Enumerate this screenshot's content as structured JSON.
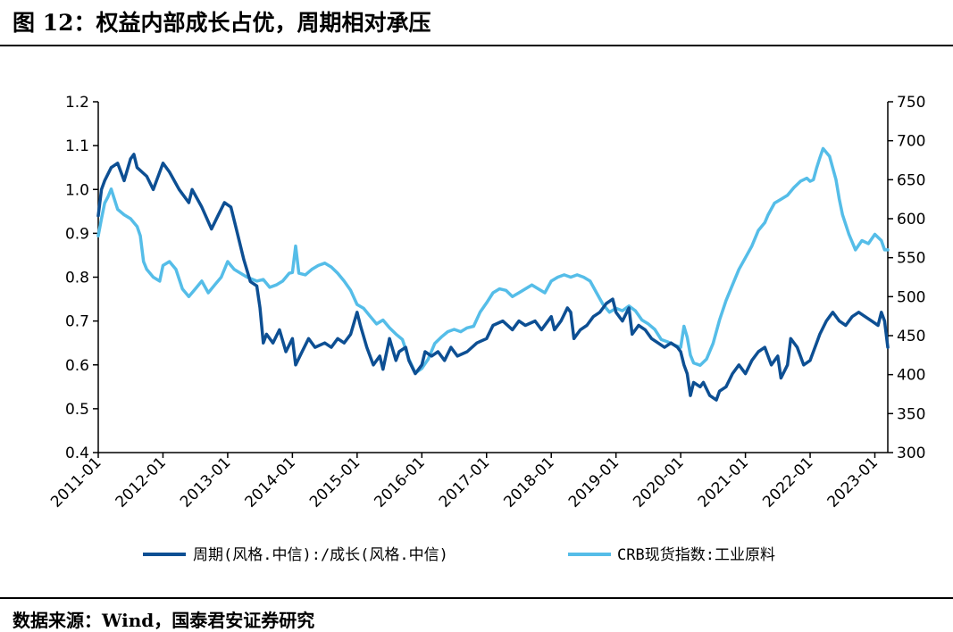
{
  "header": {
    "title": "图 12：权益内部成长占优，周期相对承压"
  },
  "footer": {
    "source": "数据来源：Wind，国泰君安证券研究"
  },
  "colors": {
    "series1": "#0d4f93",
    "series2": "#55bde8"
  },
  "chart_data": {
    "type": "line",
    "title": "图 12：权益内部成长占优，周期相对承压",
    "x_ticks": [
      "2011-01",
      "2012-01",
      "2013-01",
      "2014-01",
      "2015-01",
      "2016-01",
      "2017-01",
      "2018-01",
      "2019-01",
      "2020-01",
      "2021-01",
      "2022-01",
      "2023-01"
    ],
    "x_range": [
      2011.0,
      2023.2
    ],
    "y_left": {
      "ticks": [
        "1.2",
        "1.1",
        "1.0",
        "0.9",
        "0.8",
        "0.7",
        "0.6",
        "0.5",
        "0.4"
      ],
      "range": [
        0.4,
        1.2
      ]
    },
    "y_right": {
      "ticks": [
        "750",
        "700",
        "650",
        "600",
        "550",
        "500",
        "450",
        "400",
        "350",
        "300"
      ],
      "range": [
        300,
        750
      ]
    },
    "legend": [
      "周期(风格.中信):/成长(风格.中信)",
      "CRB现货指数:工业原料"
    ],
    "series": [
      {
        "name": "周期(风格.中信):/成长(风格.中信)",
        "axis": "left",
        "points": [
          [
            2011.0,
            0.94
          ],
          [
            2011.05,
            1.0
          ],
          [
            2011.1,
            1.02
          ],
          [
            2011.2,
            1.05
          ],
          [
            2011.3,
            1.06
          ],
          [
            2011.4,
            1.02
          ],
          [
            2011.5,
            1.07
          ],
          [
            2011.55,
            1.08
          ],
          [
            2011.6,
            1.05
          ],
          [
            2011.75,
            1.03
          ],
          [
            2011.85,
            1.0
          ],
          [
            2012.0,
            1.06
          ],
          [
            2012.1,
            1.04
          ],
          [
            2012.25,
            1.0
          ],
          [
            2012.4,
            0.97
          ],
          [
            2012.45,
            1.0
          ],
          [
            2012.6,
            0.96
          ],
          [
            2012.75,
            0.91
          ],
          [
            2012.85,
            0.94
          ],
          [
            2012.95,
            0.97
          ],
          [
            2013.05,
            0.96
          ],
          [
            2013.15,
            0.9
          ],
          [
            2013.25,
            0.84
          ],
          [
            2013.35,
            0.79
          ],
          [
            2013.45,
            0.78
          ],
          [
            2013.5,
            0.73
          ],
          [
            2013.55,
            0.65
          ],
          [
            2013.6,
            0.67
          ],
          [
            2013.7,
            0.65
          ],
          [
            2013.8,
            0.68
          ],
          [
            2013.9,
            0.63
          ],
          [
            2014.0,
            0.66
          ],
          [
            2014.05,
            0.6
          ],
          [
            2014.15,
            0.63
          ],
          [
            2014.25,
            0.66
          ],
          [
            2014.35,
            0.64
          ],
          [
            2014.5,
            0.65
          ],
          [
            2014.6,
            0.64
          ],
          [
            2014.7,
            0.66
          ],
          [
            2014.8,
            0.65
          ],
          [
            2014.9,
            0.67
          ],
          [
            2015.0,
            0.72
          ],
          [
            2015.05,
            0.69
          ],
          [
            2015.15,
            0.64
          ],
          [
            2015.25,
            0.6
          ],
          [
            2015.35,
            0.62
          ],
          [
            2015.4,
            0.59
          ],
          [
            2015.5,
            0.66
          ],
          [
            2015.6,
            0.61
          ],
          [
            2015.65,
            0.63
          ],
          [
            2015.75,
            0.64
          ],
          [
            2015.8,
            0.61
          ],
          [
            2015.9,
            0.58
          ],
          [
            2016.0,
            0.6
          ],
          [
            2016.05,
            0.63
          ],
          [
            2016.15,
            0.62
          ],
          [
            2016.25,
            0.63
          ],
          [
            2016.35,
            0.61
          ],
          [
            2016.45,
            0.64
          ],
          [
            2016.55,
            0.62
          ],
          [
            2016.7,
            0.63
          ],
          [
            2016.85,
            0.65
          ],
          [
            2017.0,
            0.66
          ],
          [
            2017.1,
            0.69
          ],
          [
            2017.25,
            0.7
          ],
          [
            2017.4,
            0.68
          ],
          [
            2017.5,
            0.7
          ],
          [
            2017.6,
            0.69
          ],
          [
            2017.75,
            0.7
          ],
          [
            2017.85,
            0.68
          ],
          [
            2017.95,
            0.7
          ],
          [
            2018.0,
            0.71
          ],
          [
            2018.05,
            0.68
          ],
          [
            2018.15,
            0.7
          ],
          [
            2018.25,
            0.73
          ],
          [
            2018.3,
            0.72
          ],
          [
            2018.35,
            0.66
          ],
          [
            2018.45,
            0.68
          ],
          [
            2018.55,
            0.69
          ],
          [
            2018.65,
            0.71
          ],
          [
            2018.75,
            0.72
          ],
          [
            2018.85,
            0.74
          ],
          [
            2018.95,
            0.75
          ],
          [
            2019.0,
            0.72
          ],
          [
            2019.1,
            0.7
          ],
          [
            2019.2,
            0.73
          ],
          [
            2019.25,
            0.67
          ],
          [
            2019.35,
            0.69
          ],
          [
            2019.45,
            0.68
          ],
          [
            2019.55,
            0.66
          ],
          [
            2019.65,
            0.65
          ],
          [
            2019.75,
            0.64
          ],
          [
            2019.85,
            0.65
          ],
          [
            2019.95,
            0.64
          ],
          [
            2020.0,
            0.63
          ],
          [
            2020.05,
            0.6
          ],
          [
            2020.1,
            0.58
          ],
          [
            2020.15,
            0.53
          ],
          [
            2020.2,
            0.56
          ],
          [
            2020.3,
            0.55
          ],
          [
            2020.35,
            0.56
          ],
          [
            2020.45,
            0.53
          ],
          [
            2020.55,
            0.52
          ],
          [
            2020.6,
            0.54
          ],
          [
            2020.7,
            0.55
          ],
          [
            2020.8,
            0.58
          ],
          [
            2020.9,
            0.6
          ],
          [
            2021.0,
            0.58
          ],
          [
            2021.1,
            0.61
          ],
          [
            2021.2,
            0.63
          ],
          [
            2021.3,
            0.64
          ],
          [
            2021.4,
            0.6
          ],
          [
            2021.5,
            0.62
          ],
          [
            2021.55,
            0.57
          ],
          [
            2021.65,
            0.6
          ],
          [
            2021.7,
            0.66
          ],
          [
            2021.8,
            0.64
          ],
          [
            2021.9,
            0.6
          ],
          [
            2022.0,
            0.61
          ],
          [
            2022.1,
            0.65
          ],
          [
            2022.15,
            0.67
          ],
          [
            2022.25,
            0.7
          ],
          [
            2022.3,
            0.71
          ],
          [
            2022.35,
            0.72
          ],
          [
            2022.45,
            0.7
          ],
          [
            2022.55,
            0.69
          ],
          [
            2022.65,
            0.71
          ],
          [
            2022.75,
            0.72
          ],
          [
            2022.85,
            0.71
          ],
          [
            2022.95,
            0.7
          ],
          [
            2023.05,
            0.69
          ],
          [
            2023.1,
            0.72
          ],
          [
            2023.15,
            0.7
          ],
          [
            2023.2,
            0.64
          ]
        ]
      },
      {
        "name": "CRB现货指数:工业原料",
        "axis": "right",
        "points": [
          [
            2011.0,
            578
          ],
          [
            2011.05,
            600
          ],
          [
            2011.1,
            620
          ],
          [
            2011.15,
            628
          ],
          [
            2011.2,
            638
          ],
          [
            2011.25,
            625
          ],
          [
            2011.3,
            612
          ],
          [
            2011.4,
            605
          ],
          [
            2011.5,
            600
          ],
          [
            2011.6,
            590
          ],
          [
            2011.65,
            578
          ],
          [
            2011.7,
            545
          ],
          [
            2011.75,
            535
          ],
          [
            2011.85,
            525
          ],
          [
            2011.95,
            520
          ],
          [
            2012.0,
            540
          ],
          [
            2012.1,
            545
          ],
          [
            2012.2,
            535
          ],
          [
            2012.3,
            510
          ],
          [
            2012.4,
            500
          ],
          [
            2012.5,
            510
          ],
          [
            2012.6,
            520
          ],
          [
            2012.7,
            505
          ],
          [
            2012.8,
            515
          ],
          [
            2012.9,
            525
          ],
          [
            2013.0,
            545
          ],
          [
            2013.05,
            540
          ],
          [
            2013.1,
            535
          ],
          [
            2013.2,
            530
          ],
          [
            2013.3,
            525
          ],
          [
            2013.45,
            520
          ],
          [
            2013.55,
            522
          ],
          [
            2013.65,
            512
          ],
          [
            2013.75,
            515
          ],
          [
            2013.85,
            520
          ],
          [
            2013.95,
            530
          ],
          [
            2014.0,
            531
          ],
          [
            2014.05,
            565
          ],
          [
            2014.1,
            530
          ],
          [
            2014.2,
            528
          ],
          [
            2014.3,
            535
          ],
          [
            2014.4,
            540
          ],
          [
            2014.5,
            543
          ],
          [
            2014.6,
            538
          ],
          [
            2014.7,
            530
          ],
          [
            2014.8,
            520
          ],
          [
            2014.9,
            508
          ],
          [
            2015.0,
            490
          ],
          [
            2015.1,
            485
          ],
          [
            2015.2,
            475
          ],
          [
            2015.3,
            465
          ],
          [
            2015.4,
            470
          ],
          [
            2015.5,
            460
          ],
          [
            2015.6,
            452
          ],
          [
            2015.7,
            445
          ],
          [
            2015.8,
            420
          ],
          [
            2015.9,
            402
          ],
          [
            2016.0,
            408
          ],
          [
            2016.1,
            420
          ],
          [
            2016.2,
            440
          ],
          [
            2016.3,
            448
          ],
          [
            2016.4,
            455
          ],
          [
            2016.5,
            458
          ],
          [
            2016.6,
            455
          ],
          [
            2016.7,
            460
          ],
          [
            2016.8,
            462
          ],
          [
            2016.9,
            480
          ],
          [
            2017.0,
            492
          ],
          [
            2017.1,
            505
          ],
          [
            2017.2,
            510
          ],
          [
            2017.3,
            508
          ],
          [
            2017.4,
            500
          ],
          [
            2017.5,
            505
          ],
          [
            2017.6,
            510
          ],
          [
            2017.7,
            515
          ],
          [
            2017.8,
            510
          ],
          [
            2017.9,
            505
          ],
          [
            2018.0,
            520
          ],
          [
            2018.1,
            525
          ],
          [
            2018.2,
            528
          ],
          [
            2018.3,
            525
          ],
          [
            2018.4,
            528
          ],
          [
            2018.5,
            525
          ],
          [
            2018.6,
            520
          ],
          [
            2018.7,
            505
          ],
          [
            2018.8,
            490
          ],
          [
            2018.9,
            480
          ],
          [
            2019.0,
            485
          ],
          [
            2019.1,
            482
          ],
          [
            2019.2,
            488
          ],
          [
            2019.3,
            482
          ],
          [
            2019.4,
            470
          ],
          [
            2019.5,
            465
          ],
          [
            2019.6,
            458
          ],
          [
            2019.7,
            445
          ],
          [
            2019.8,
            442
          ],
          [
            2019.9,
            438
          ],
          [
            2020.0,
            435
          ],
          [
            2020.05,
            462
          ],
          [
            2020.1,
            448
          ],
          [
            2020.15,
            425
          ],
          [
            2020.2,
            415
          ],
          [
            2020.3,
            412
          ],
          [
            2020.4,
            420
          ],
          [
            2020.5,
            440
          ],
          [
            2020.6,
            470
          ],
          [
            2020.7,
            495
          ],
          [
            2020.8,
            515
          ],
          [
            2020.9,
            535
          ],
          [
            2021.0,
            550
          ],
          [
            2021.1,
            565
          ],
          [
            2021.2,
            585
          ],
          [
            2021.3,
            595
          ],
          [
            2021.35,
            605
          ],
          [
            2021.45,
            620
          ],
          [
            2021.55,
            625
          ],
          [
            2021.65,
            630
          ],
          [
            2021.75,
            640
          ],
          [
            2021.85,
            648
          ],
          [
            2021.95,
            652
          ],
          [
            2022.0,
            648
          ],
          [
            2022.05,
            650
          ],
          [
            2022.1,
            665
          ],
          [
            2022.15,
            678
          ],
          [
            2022.2,
            690
          ],
          [
            2022.3,
            680
          ],
          [
            2022.4,
            650
          ],
          [
            2022.45,
            625
          ],
          [
            2022.5,
            605
          ],
          [
            2022.6,
            580
          ],
          [
            2022.7,
            560
          ],
          [
            2022.8,
            572
          ],
          [
            2022.9,
            568
          ],
          [
            2023.0,
            580
          ],
          [
            2023.1,
            572
          ],
          [
            2023.15,
            560
          ],
          [
            2023.2,
            560
          ]
        ]
      }
    ]
  }
}
